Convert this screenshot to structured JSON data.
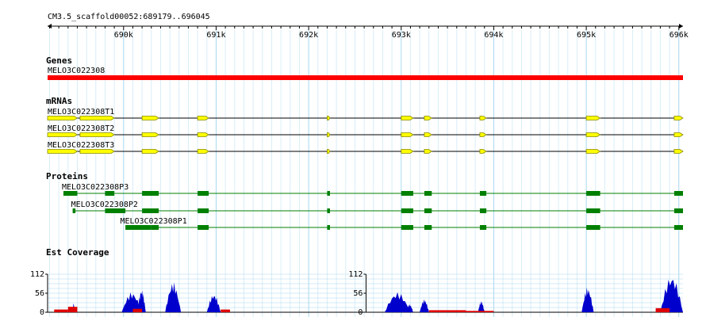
{
  "region_label": "CM3.5_scaffold00052:689179..696045",
  "ruler": {
    "start": 689179,
    "end": 696045,
    "major_ticks": [
      {
        "pos": 690000,
        "label": "690k"
      },
      {
        "pos": 691000,
        "label": "691k"
      },
      {
        "pos": 692000,
        "label": "692k"
      },
      {
        "pos": 693000,
        "label": "693k"
      },
      {
        "pos": 694000,
        "label": "694k"
      },
      {
        "pos": 695000,
        "label": "695k"
      },
      {
        "pos": 696000,
        "label": "696k"
      }
    ],
    "minor_step": 100
  },
  "colors": {
    "gene": "#ff0000",
    "mrna_exon": "#ffff00",
    "mrna_border": "#888800",
    "protein": "#008000",
    "grid_major": "#a8d8f0",
    "grid_minor": "#d8eef8",
    "coverage_fwd": "#0000cc",
    "coverage_rev": "#dd0000"
  },
  "tracks": {
    "genes": {
      "title": "Genes",
      "items": [
        {
          "name": "MELO3C022308",
          "start": 689179,
          "end": 696045
        }
      ]
    },
    "mrnas": {
      "title": "mRNAs",
      "items": [
        {
          "name": "MELO3C022308T1",
          "start": 689179,
          "end": 696045,
          "exons": [
            [
              689179,
              689500
            ],
            [
              689530,
              689900
            ],
            [
              690200,
              690380
            ],
            [
              690800,
              690920
            ],
            [
              692200,
              692230
            ],
            [
              693000,
              693130
            ],
            [
              693250,
              693330
            ],
            [
              693850,
              693920
            ],
            [
              695000,
              695150
            ],
            [
              695950,
              696045
            ]
          ]
        },
        {
          "name": "MELO3C022308T2",
          "start": 689179,
          "end": 696045,
          "exons": [
            [
              689179,
              689500
            ],
            [
              689530,
              689900
            ],
            [
              690200,
              690380
            ],
            [
              690800,
              690920
            ],
            [
              692200,
              692230
            ],
            [
              693000,
              693130
            ],
            [
              693250,
              693330
            ],
            [
              693850,
              693920
            ],
            [
              695000,
              695150
            ],
            [
              695950,
              696045
            ]
          ]
        },
        {
          "name": "MELO3C022308T3",
          "start": 689179,
          "end": 696045,
          "exons": [
            [
              689179,
              689500
            ],
            [
              689530,
              689900
            ],
            [
              690200,
              690380
            ],
            [
              690800,
              690920
            ],
            [
              692200,
              692230
            ],
            [
              693000,
              693130
            ],
            [
              693250,
              693330
            ],
            [
              693850,
              693920
            ],
            [
              695000,
              695150
            ],
            [
              695950,
              696045
            ]
          ]
        }
      ]
    },
    "proteins": {
      "title": "Proteins",
      "items": [
        {
          "name": "MELO3C022308P3",
          "label_pos": 689350,
          "start": 689350,
          "end": 696045,
          "blocks": [
            [
              689350,
              689500
            ],
            [
              689800,
              689900
            ],
            [
              690200,
              690380
            ],
            [
              690800,
              690920
            ],
            [
              692200,
              692230
            ],
            [
              693000,
              693130
            ],
            [
              693250,
              693330
            ],
            [
              693850,
              693920
            ],
            [
              695000,
              695150
            ],
            [
              695950,
              696045
            ]
          ]
        },
        {
          "name": "MELO3C022308P2",
          "label_pos": 689450,
          "start": 689450,
          "end": 696045,
          "blocks": [
            [
              689450,
              689480
            ],
            [
              689800,
              690020
            ],
            [
              690200,
              690380
            ],
            [
              690800,
              690920
            ],
            [
              692200,
              692230
            ],
            [
              693000,
              693130
            ],
            [
              693250,
              693330
            ],
            [
              693850,
              693920
            ],
            [
              695000,
              695150
            ],
            [
              695950,
              696045
            ]
          ]
        },
        {
          "name": "MELO3C022308P1",
          "label_pos": 689980,
          "start": 690020,
          "end": 696045,
          "blocks": [
            [
              690020,
              690300
            ],
            [
              690300,
              690380
            ],
            [
              690800,
              690920
            ],
            [
              692200,
              692230
            ],
            [
              693000,
              693130
            ],
            [
              693250,
              693330
            ],
            [
              693850,
              693920
            ],
            [
              695000,
              695150
            ],
            [
              695950,
              696045
            ]
          ]
        }
      ]
    },
    "coverage": {
      "title": "Est Coverage",
      "ymax": 112,
      "ticks": [
        "112",
        "56",
        "0"
      ],
      "panels": [
        {
          "start": 689179,
          "end": 692600,
          "peaks": [
            [
              689450,
              689470,
              30
            ],
            [
              689980,
              690200,
              60
            ],
            [
              690150,
              690240,
              70
            ],
            [
              690450,
              690620,
              90
            ],
            [
              690900,
              691050,
              55
            ]
          ],
          "rev_bumps": [
            [
              689250,
              689400,
              8
            ],
            [
              689400,
              689500,
              16
            ],
            [
              690100,
              690200,
              10
            ],
            [
              691050,
              691150,
              8
            ]
          ]
        },
        {
          "start": 692620,
          "end": 696045,
          "peaks": [
            [
              692820,
              693100,
              60
            ],
            [
              693050,
              693130,
              25
            ],
            [
              693200,
              693300,
              40
            ],
            [
              693830,
              693900,
              35
            ],
            [
              694950,
              695080,
              75
            ],
            [
              695800,
              696045,
              110
            ]
          ],
          "rev_bumps": [
            [
              693300,
              693700,
              6
            ],
            [
              693700,
              694000,
              4
            ],
            [
              695750,
              695900,
              12
            ]
          ]
        }
      ]
    }
  }
}
